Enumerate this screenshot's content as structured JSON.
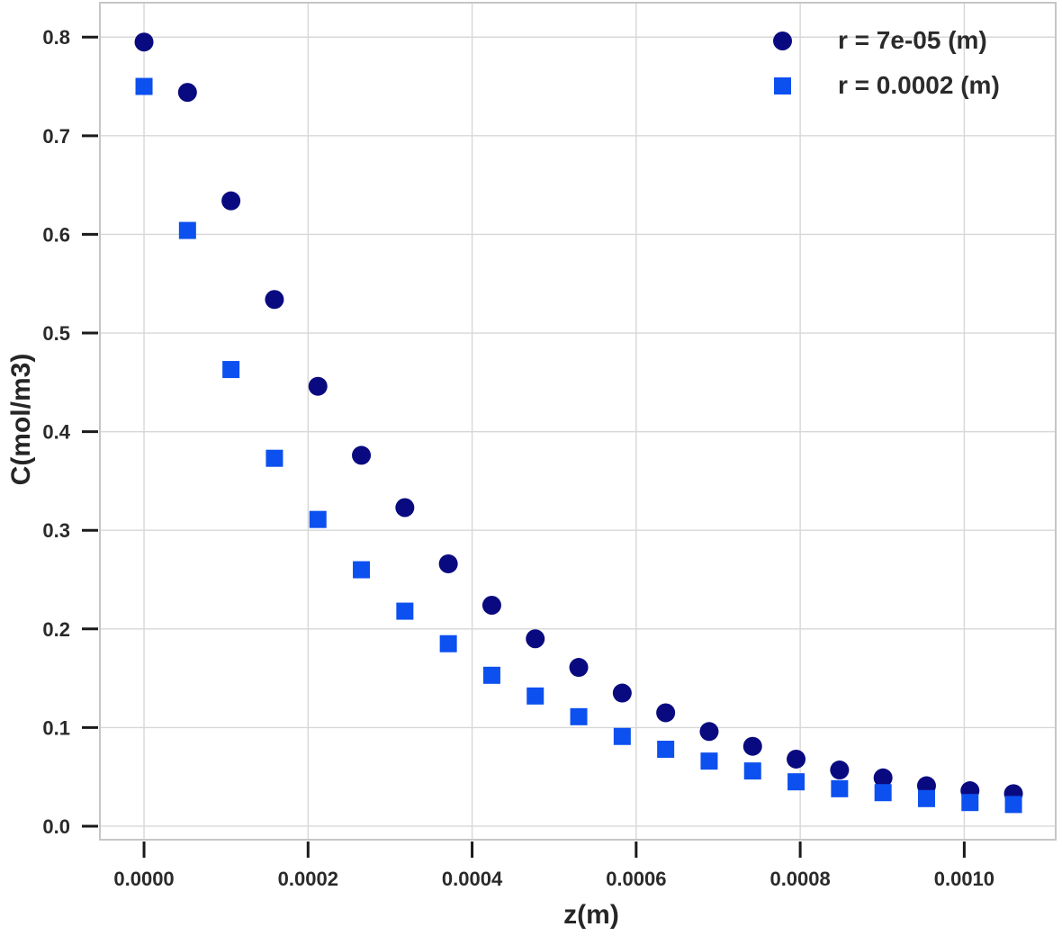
{
  "chart_data": {
    "type": "scatter",
    "title": "",
    "xlabel": "z(m)",
    "ylabel": "C(mol/m3)",
    "x": [
      0.0,
      5.3e-05,
      0.000106,
      0.000159,
      0.000212,
      0.000265,
      0.000318,
      0.000371,
      0.000424,
      0.000477,
      0.00053,
      0.000583,
      0.000636,
      0.000689,
      0.000742,
      0.000795,
      0.000848,
      0.000901,
      0.000954,
      0.001007,
      0.00106
    ],
    "series": [
      {
        "name": "r = 7e-05 (m)",
        "marker": "circle",
        "color": "#0a0a80",
        "values": [
          0.795,
          0.744,
          0.634,
          0.534,
          0.446,
          0.376,
          0.323,
          0.266,
          0.224,
          0.19,
          0.161,
          0.135,
          0.115,
          0.096,
          0.081,
          0.068,
          0.057,
          0.049,
          0.041,
          0.036,
          0.033
        ]
      },
      {
        "name": "r = 0.0002 (m)",
        "marker": "square",
        "color": "#0d50f0",
        "values": [
          0.75,
          0.604,
          0.463,
          0.373,
          0.311,
          0.26,
          0.218,
          0.185,
          0.153,
          0.132,
          0.111,
          0.091,
          0.078,
          0.066,
          0.056,
          0.045,
          0.038,
          0.034,
          0.028,
          0.024,
          0.022
        ]
      }
    ],
    "x_ticks": {
      "values": [
        0.0,
        0.0002,
        0.0004,
        0.0006,
        0.0008,
        0.001
      ],
      "labels": [
        "0.0000",
        "0.0002",
        "0.0004",
        "0.0006",
        "0.0008",
        "0.0010"
      ]
    },
    "y_ticks": {
      "values": [
        0.0,
        0.1,
        0.2,
        0.3,
        0.4,
        0.5,
        0.6,
        0.7,
        0.8
      ],
      "labels": [
        "0.0",
        "0.1",
        "0.2",
        "0.3",
        "0.4",
        "0.5",
        "0.6",
        "0.7",
        "0.8"
      ]
    },
    "xlim": [
      -5.38e-05,
      0.0011115
    ],
    "ylim": [
      -0.0137,
      0.8349
    ],
    "grid": true,
    "legend_position": "upper right",
    "colors": {
      "grid": "#d7d7d7",
      "frame": "#c6c6c6",
      "tick": "#1a1a1a",
      "tick_label": "#2a2a2a"
    }
  }
}
